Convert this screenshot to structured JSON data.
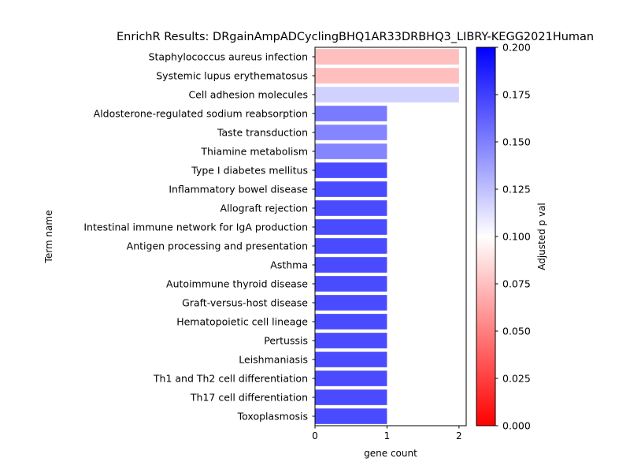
{
  "chart_data": {
    "type": "bar",
    "orientation": "horizontal",
    "title": "EnrichR Results: DRgainAmpADCyclingBHQ1AR33DRBHQ3_LIBRY-KEGG2021Human",
    "xlabel": "gene count",
    "ylabel": "Term name",
    "xlim": [
      0,
      2.1
    ],
    "xticks": [
      0,
      1,
      2
    ],
    "grid": false,
    "categories": [
      "Staphylococcus aureus infection",
      "Systemic lupus erythematosus",
      "Cell adhesion molecules",
      "Aldosterone-regulated sodium reabsorption",
      "Taste transduction",
      "Thiamine metabolism",
      "Type I diabetes mellitus",
      "Inflammatory bowel disease",
      "Allograft rejection",
      "Intestinal immune network for IgA production",
      "Antigen processing and presentation",
      "Asthma",
      "Autoimmune thyroid disease",
      "Graft-versus-host disease",
      "Hematopoietic cell lineage",
      "Pertussis",
      "Leishmaniasis",
      "Th1 and Th2 cell differentiation",
      "Th17 cell differentiation",
      "Toxoplasmosis"
    ],
    "values": [
      2,
      2,
      2,
      1,
      1,
      1,
      1,
      1,
      1,
      1,
      1,
      1,
      1,
      1,
      1,
      1,
      1,
      1,
      1,
      1
    ],
    "adjusted_p": [
      0.075,
      0.075,
      0.118,
      0.152,
      0.148,
      0.148,
      0.171,
      0.171,
      0.171,
      0.171,
      0.171,
      0.171,
      0.171,
      0.171,
      0.171,
      0.171,
      0.171,
      0.171,
      0.171,
      0.171
    ],
    "colorbar": {
      "label": "Adjusted p val",
      "range": [
        0,
        0.2
      ],
      "ticks": [
        "0.000",
        "0.025",
        "0.050",
        "0.075",
        "0.100",
        "0.125",
        "0.150",
        "0.175",
        "0.200"
      ],
      "colors": [
        "#ff0000",
        "#ffffff",
        "#0000ff"
      ]
    }
  }
}
